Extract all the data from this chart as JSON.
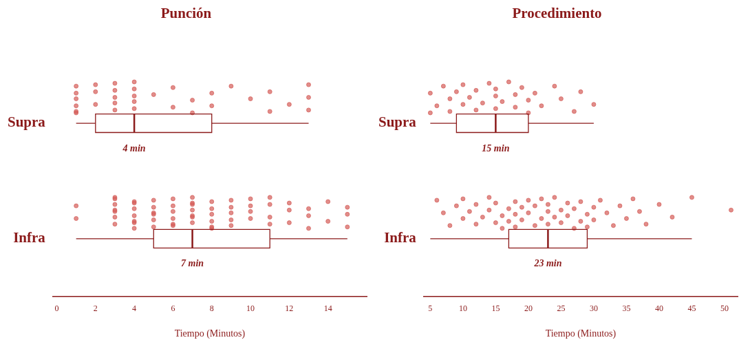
{
  "chart_data": [
    {
      "type": "box",
      "title": "Punción",
      "xlabel": "Tiempo (Minutos)",
      "orientation": "horizontal",
      "categories": [
        "Supra",
        "Infra"
      ],
      "xlim": [
        -0.2,
        16
      ],
      "xticks": [
        0,
        2,
        4,
        6,
        8,
        10,
        12,
        14
      ],
      "grid": false,
      "legend": false,
      "annotations": [
        {
          "text": "4 min",
          "x": 4,
          "y": "Supra"
        },
        {
          "text": "7 min",
          "x": 7,
          "y": "Infra"
        }
      ],
      "series": [
        {
          "type": "box",
          "color": "#8b1a1a",
          "boxes": [
            {
              "low": 1,
              "q1": 2,
              "median": 4,
              "q3": 8,
              "high": 13
            },
            {
              "low": 1,
              "q1": 5,
              "median": 7,
              "q3": 11,
              "high": 15
            }
          ]
        },
        {
          "type": "scatter",
          "color": "#d45a55",
          "x": [
            "Supra",
            "Supra",
            "Supra",
            "Supra",
            "Supra",
            "Supra",
            "Supra",
            "Supra",
            "Supra",
            "Supra",
            "Supra",
            "Supra",
            "Supra",
            "Supra",
            "Supra",
            "Supra",
            "Supra",
            "Supra",
            "Supra",
            "Supra",
            "Supra",
            "Supra",
            "Supra",
            "Supra",
            "Supra",
            "Supra",
            "Supra",
            "Supra",
            "Supra",
            "Supra",
            "Supra",
            "Supra",
            "Supra",
            "Supra",
            "Infra",
            "Infra",
            "Infra",
            "Infra",
            "Infra",
            "Infra",
            "Infra",
            "Infra",
            "Infra",
            "Infra",
            "Infra",
            "Infra",
            "Infra",
            "Infra",
            "Infra",
            "Infra",
            "Infra",
            "Infra",
            "Infra",
            "Infra",
            "Infra",
            "Infra",
            "Infra",
            "Infra",
            "Infra",
            "Infra",
            "Infra",
            "Infra",
            "Infra",
            "Infra",
            "Infra",
            "Infra",
            "Infra",
            "Infra",
            "Infra",
            "Infra",
            "Infra",
            "Infra",
            "Infra",
            "Infra",
            "Infra",
            "Infra",
            "Infra",
            "Infra",
            "Infra",
            "Infra",
            "Infra",
            "Infra",
            "Infra",
            "Infra",
            "Infra",
            "Infra",
            "Infra",
            "Infra",
            "Infra",
            "Infra",
            "Infra",
            "Infra",
            "Infra",
            "Infra",
            "Infra",
            "Infra",
            "Infra",
            "Infra",
            "Infra"
          ],
          "values": [
            1,
            1,
            1,
            1,
            1,
            1,
            2,
            2,
            2,
            3,
            3,
            3,
            3,
            3,
            4,
            4,
            4,
            4,
            4,
            5,
            6,
            6,
            7,
            7,
            8,
            8,
            9,
            10,
            11,
            11,
            12,
            13,
            13,
            13,
            1,
            1,
            3,
            3,
            3,
            3,
            3,
            3,
            3,
            4,
            4,
            4,
            4,
            4,
            4,
            4,
            5,
            5,
            5,
            5,
            5,
            5,
            6,
            6,
            6,
            6,
            6,
            6,
            7,
            7,
            7,
            7,
            7,
            7,
            7,
            8,
            8,
            8,
            8,
            8,
            8,
            9,
            9,
            9,
            9,
            9,
            10,
            10,
            10,
            10,
            11,
            11,
            11,
            11,
            12,
            12,
            12,
            13,
            13,
            13,
            14,
            14,
            15,
            15,
            15
          ]
        }
      ]
    },
    {
      "type": "box",
      "title": "Procedimiento",
      "xlabel": "Tiempo (Minutos)",
      "orientation": "horizontal",
      "categories": [
        "Supra",
        "Infra"
      ],
      "xlim": [
        4,
        52
      ],
      "xticks": [
        5,
        10,
        15,
        20,
        25,
        30,
        35,
        40,
        45,
        50
      ],
      "grid": false,
      "legend": false,
      "annotations": [
        {
          "text": "15 min",
          "x": 15,
          "y": "Supra"
        },
        {
          "text": "23 min",
          "x": 23,
          "y": "Infra"
        }
      ],
      "series": [
        {
          "type": "box",
          "color": "#8b1a1a",
          "boxes": [
            {
              "low": 5,
              "q1": 9,
              "median": 15,
              "q3": 20,
              "high": 30
            },
            {
              "low": 5,
              "q1": 17,
              "median": 23,
              "q3": 29,
              "high": 45
            }
          ]
        },
        {
          "type": "scatter",
          "color": "#d45a55",
          "x": [
            "Supra",
            "Supra",
            "Supra",
            "Supra",
            "Supra",
            "Supra",
            "Supra",
            "Supra",
            "Supra",
            "Supra",
            "Supra",
            "Supra",
            "Supra",
            "Supra",
            "Supra",
            "Supra",
            "Supra",
            "Supra",
            "Supra",
            "Supra",
            "Supra",
            "Supra",
            "Supra",
            "Supra",
            "Supra",
            "Supra",
            "Supra",
            "Supra",
            "Supra",
            "Supra",
            "Supra",
            "Infra",
            "Infra",
            "Infra",
            "Infra",
            "Infra",
            "Infra",
            "Infra",
            "Infra",
            "Infra",
            "Infra",
            "Infra",
            "Infra",
            "Infra",
            "Infra",
            "Infra",
            "Infra",
            "Infra",
            "Infra",
            "Infra",
            "Infra",
            "Infra",
            "Infra",
            "Infra",
            "Infra",
            "Infra",
            "Infra",
            "Infra",
            "Infra",
            "Infra",
            "Infra",
            "Infra",
            "Infra",
            "Infra",
            "Infra",
            "Infra",
            "Infra",
            "Infra",
            "Infra",
            "Infra",
            "Infra",
            "Infra",
            "Infra",
            "Infra",
            "Infra",
            "Infra",
            "Infra",
            "Infra",
            "Infra",
            "Infra",
            "Infra",
            "Infra",
            "Infra",
            "Infra",
            "Infra",
            "Infra",
            "Infra",
            "Infra",
            "Infra"
          ],
          "values": [
            5,
            5,
            6,
            7,
            8,
            8,
            9,
            10,
            10,
            11,
            12,
            12,
            13,
            14,
            15,
            15,
            15,
            16,
            17,
            18,
            18,
            19,
            20,
            20,
            21,
            22,
            24,
            25,
            27,
            28,
            30,
            6,
            7,
            8,
            9,
            10,
            10,
            11,
            12,
            12,
            13,
            14,
            14,
            15,
            15,
            16,
            16,
            17,
            17,
            18,
            18,
            18,
            19,
            19,
            20,
            20,
            21,
            21,
            22,
            22,
            23,
            23,
            23,
            24,
            24,
            25,
            25,
            26,
            26,
            27,
            27,
            28,
            28,
            29,
            29,
            30,
            30,
            31,
            32,
            33,
            34,
            35,
            36,
            37,
            38,
            40,
            42,
            45,
            51
          ]
        }
      ]
    }
  ]
}
